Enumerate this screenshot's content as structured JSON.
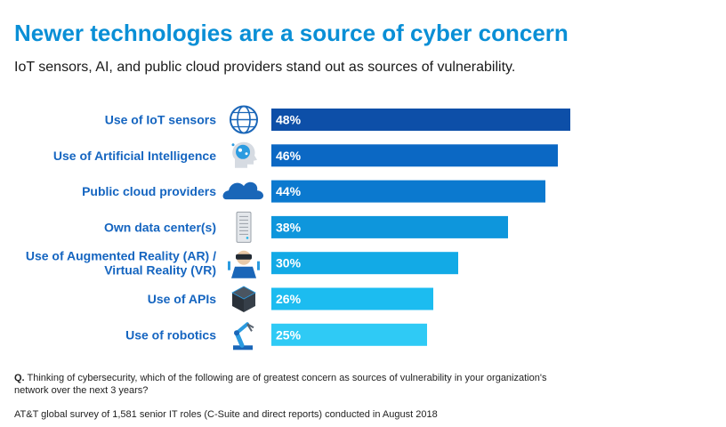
{
  "header": {
    "title": "Newer technologies are a source of cyber concern",
    "subtitle": "IoT sensors, AI, and public cloud providers stand out as sources of vulnerability."
  },
  "chart_data": {
    "type": "bar",
    "orientation": "horizontal",
    "categories": [
      "Use of IoT sensors",
      "Use of Artificial Intelligence",
      "Public cloud providers",
      "Own data center(s)",
      "Use of Augmented Reality (AR) / Virtual Reality (VR)",
      "Use of APIs",
      "Use of robotics"
    ],
    "category_lines": [
      [
        "Use of IoT sensors"
      ],
      [
        "Use of Artificial Intelligence"
      ],
      [
        "Public cloud providers"
      ],
      [
        "Own data center(s)"
      ],
      [
        "Use of Augmented Reality (AR) /",
        "Virtual Reality (VR)"
      ],
      [
        "Use of APIs"
      ],
      [
        "Use of robotics"
      ]
    ],
    "values": [
      48,
      46,
      44,
      38,
      30,
      26,
      25
    ],
    "value_labels": [
      "48%",
      "46%",
      "44%",
      "38%",
      "30%",
      "26%",
      "25%"
    ],
    "icons": [
      "globe-icon",
      "brain-head-icon",
      "cloud-icon",
      "server-tower-icon",
      "vr-headset-person-icon",
      "cube-icon",
      "robot-arm-icon"
    ],
    "colors": [
      "#0d4fa8",
      "#0b68c4",
      "#0b79cf",
      "#0e96dc",
      "#12aae6",
      "#1cbcf0",
      "#2fcaf5"
    ],
    "xlim": [
      0,
      50
    ],
    "grid": false,
    "legend": "none"
  },
  "footer": {
    "question_prefix": "Q.",
    "question": "Thinking of cybersecurity, which of the following are of greatest concern as sources of vulnerability in your organization's network over the next 3 years?",
    "source": "AT&T global survey of 1,581 senior IT roles (C-Suite and direct reports) conducted in August 2018"
  }
}
